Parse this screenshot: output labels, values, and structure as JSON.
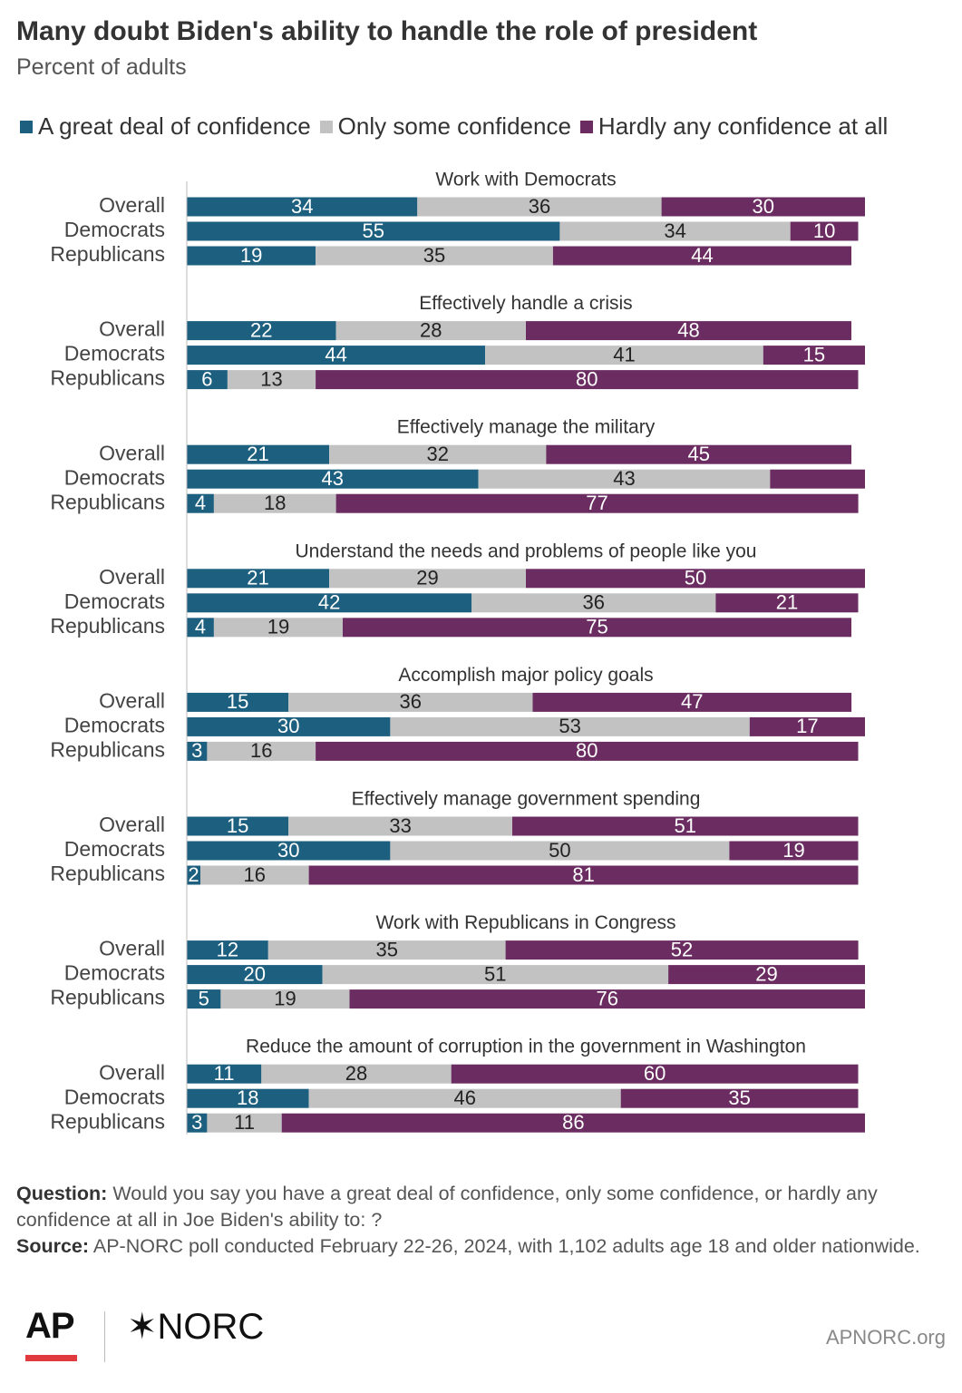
{
  "title": "Many doubt Biden's ability to handle the role of president",
  "subtitle": "Percent of adults",
  "colors": {
    "great": "#1c5f7f",
    "some": "#c2c2c2",
    "hardly": "#6b2d61",
    "ap_red": "#e03a3e"
  },
  "footer": {
    "question_label": "Question:",
    "question_text": "Would you say you have a great deal of confidence, only some confidence, or hardly any confidence at all in Joe Biden's ability to: ?",
    "source_label": "Source:",
    "source_text": "AP-NORC poll conducted February 22-26, 2024, with 1,102 adults age 18 and older nationwide."
  },
  "logos": {
    "ap": "AP",
    "norc_mark": "✶",
    "norc": "NORC",
    "site": "APNORC.org"
  },
  "chart_data": {
    "type": "bar",
    "orientation": "horizontal",
    "stacked": true,
    "xlim": [
      0,
      100
    ],
    "x_ticks": [
      "0",
      "25",
      "50",
      "75",
      "100"
    ],
    "x_unit": "%",
    "legend": "top",
    "series": [
      {
        "name": "A great deal of confidence",
        "key": "great"
      },
      {
        "name": "Only some confidence",
        "key": "some"
      },
      {
        "name": "Hardly any confidence at all",
        "key": "hardly"
      }
    ],
    "groups": [
      {
        "label": "Work with Democrats",
        "rows": [
          {
            "label": "Overall",
            "values": [
              34,
              36,
              30
            ]
          },
          {
            "label": "Democrats",
            "values": [
              55,
              34,
              10
            ]
          },
          {
            "label": "Republicans",
            "values": [
              19,
              35,
              44
            ]
          }
        ]
      },
      {
        "label": "Effectively handle a crisis",
        "rows": [
          {
            "label": "Overall",
            "values": [
              22,
              28,
              48
            ]
          },
          {
            "label": "Democrats",
            "values": [
              44,
              41,
              15
            ]
          },
          {
            "label": "Republicans",
            "values": [
              6,
              13,
              80
            ]
          }
        ]
      },
      {
        "label": "Effectively manage the military",
        "rows": [
          {
            "label": "Overall",
            "values": [
              21,
              32,
              45
            ]
          },
          {
            "label": "Democrats",
            "values": [
              43,
              43,
              14
            ]
          },
          {
            "label": "Republicans",
            "values": [
              4,
              18,
              77
            ]
          }
        ]
      },
      {
        "label": "Understand the needs and problems of people like you",
        "rows": [
          {
            "label": "Overall",
            "values": [
              21,
              29,
              50
            ]
          },
          {
            "label": "Democrats",
            "values": [
              42,
              36,
              21
            ]
          },
          {
            "label": "Republicans",
            "values": [
              4,
              19,
              75
            ]
          }
        ]
      },
      {
        "label": "Accomplish major policy goals",
        "rows": [
          {
            "label": "Overall",
            "values": [
              15,
              36,
              47
            ]
          },
          {
            "label": "Democrats",
            "values": [
              30,
              53,
              17
            ]
          },
          {
            "label": "Republicans",
            "values": [
              3,
              16,
              80
            ]
          }
        ]
      },
      {
        "label": "Effectively manage government spending",
        "rows": [
          {
            "label": "Overall",
            "values": [
              15,
              33,
              51
            ]
          },
          {
            "label": "Democrats",
            "values": [
              30,
              50,
              19
            ]
          },
          {
            "label": "Republicans",
            "values": [
              2,
              16,
              81
            ]
          }
        ]
      },
      {
        "label": "Work with Republicans in Congress",
        "rows": [
          {
            "label": "Overall",
            "values": [
              12,
              35,
              52
            ]
          },
          {
            "label": "Democrats",
            "values": [
              20,
              51,
              29
            ]
          },
          {
            "label": "Republicans",
            "values": [
              5,
              19,
              76
            ]
          }
        ]
      },
      {
        "label": "Reduce the amount of corruption in the government in Washington",
        "rows": [
          {
            "label": "Overall",
            "values": [
              11,
              28,
              60
            ]
          },
          {
            "label": "Democrats",
            "values": [
              18,
              46,
              35
            ]
          },
          {
            "label": "Republicans",
            "values": [
              3,
              11,
              86
            ]
          }
        ]
      }
    ]
  }
}
